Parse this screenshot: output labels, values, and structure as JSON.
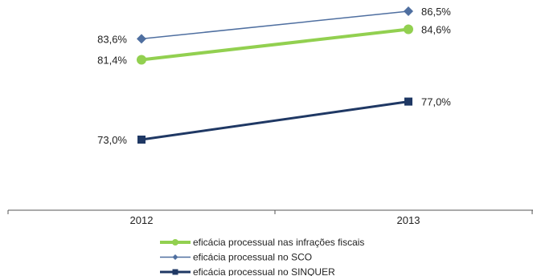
{
  "chart_data": {
    "type": "line",
    "title": "",
    "xlabel": "",
    "ylabel": "",
    "categories": [
      "2012",
      "2013"
    ],
    "ylim": [
      60,
      90
    ],
    "grid": false,
    "legend_position": "bottom",
    "series": [
      {
        "name": "eficácia processual nas infrações fiscais",
        "values": [
          81.4,
          84.6
        ],
        "labels": [
          "81,4%",
          "84,6%"
        ],
        "color": "#92D050",
        "marker": "circle"
      },
      {
        "name": "eficácia processual no SCO",
        "values": [
          83.6,
          86.5
        ],
        "labels": [
          "83,6%",
          "86,5%"
        ],
        "color": "#4F6FA0",
        "marker": "diamond"
      },
      {
        "name": "eficácia processual no SINQUER",
        "values": [
          73.0,
          77.0
        ],
        "labels": [
          "73,0%",
          "77,0%"
        ],
        "color": "#1F3864",
        "marker": "square"
      }
    ]
  }
}
